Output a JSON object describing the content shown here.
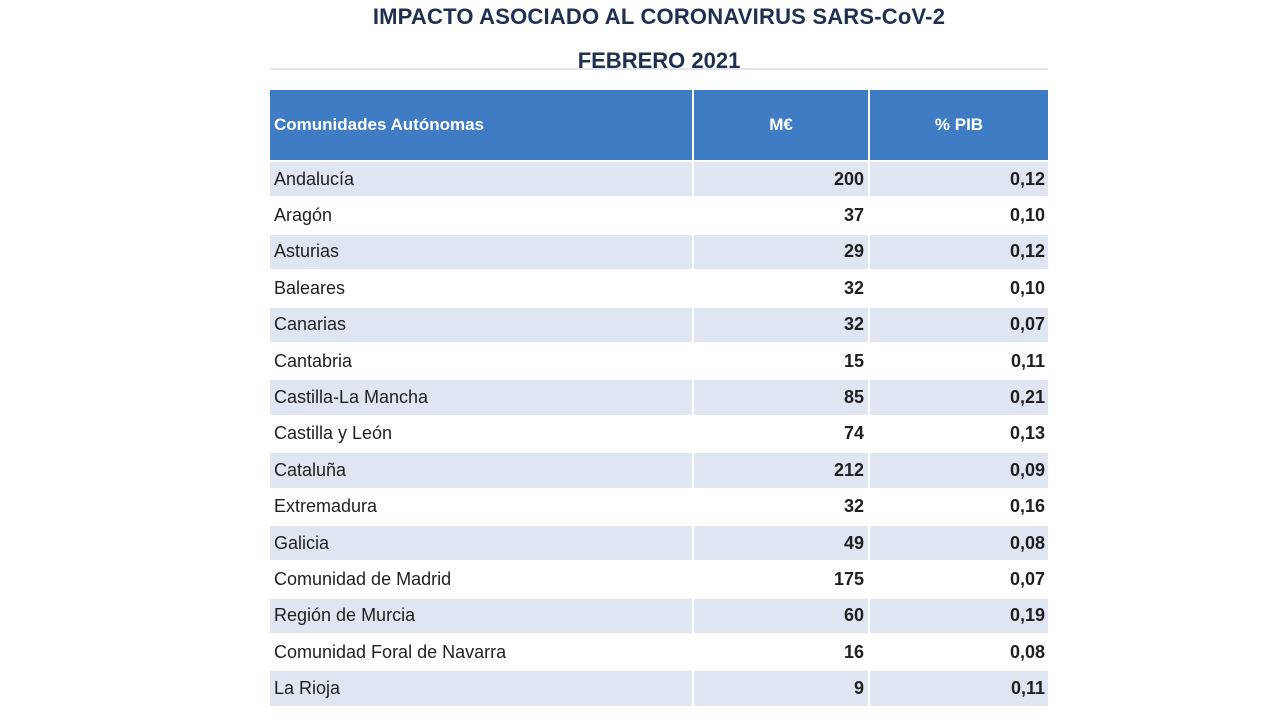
{
  "document": {
    "title": "IMPACTO ASOCIADO AL CORONAVIRUS SARS-CoV-2",
    "subtitle": "FEBRERO 2021"
  },
  "table": {
    "headers": {
      "region": "Comunidades Autónomas",
      "meur": "M€",
      "pib": "% PIB"
    },
    "rows": [
      {
        "region": "Andalucía",
        "meur": "200",
        "pib": "0,12"
      },
      {
        "region": "Aragón",
        "meur": "37",
        "pib": "0,10"
      },
      {
        "region": "Asturias",
        "meur": "29",
        "pib": "0,12"
      },
      {
        "region": "Baleares",
        "meur": "32",
        "pib": "0,10"
      },
      {
        "region": "Canarias",
        "meur": "32",
        "pib": "0,07"
      },
      {
        "region": "Cantabria",
        "meur": "15",
        "pib": "0,11"
      },
      {
        "region": "Castilla-La Mancha",
        "meur": "85",
        "pib": "0,21"
      },
      {
        "region": "Castilla y León",
        "meur": "74",
        "pib": "0,13"
      },
      {
        "region": "Cataluña",
        "meur": "212",
        "pib": "0,09"
      },
      {
        "region": "Extremadura",
        "meur": "32",
        "pib": "0,16"
      },
      {
        "region": "Galicia",
        "meur": "49",
        "pib": "0,08"
      },
      {
        "region": "Comunidad de Madrid",
        "meur": "175",
        "pib": "0,07"
      },
      {
        "region": "Región de Murcia",
        "meur": "60",
        "pib": "0,19"
      },
      {
        "region": "Comunidad Foral de Navarra",
        "meur": "16",
        "pib": "0,08"
      },
      {
        "region": "La Rioja",
        "meur": "9",
        "pib": "0,11"
      }
    ]
  },
  "colors": {
    "header_background": "#3f7cc4",
    "header_text": "#ffffff",
    "shaded_row": "#dfe5f1",
    "title_text": "#1f2f4f"
  }
}
